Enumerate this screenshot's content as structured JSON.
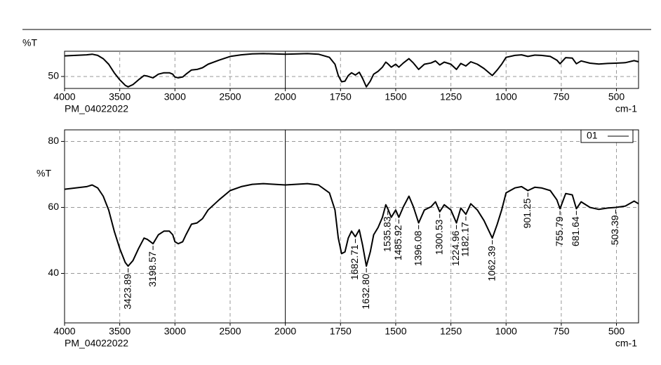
{
  "chart_data": [
    {
      "type": "line",
      "ylabel": "%T",
      "xlabel": "cm-1",
      "sample": "PM_04022022",
      "xlim": [
        4000,
        400
      ],
      "x_break": 2000,
      "ylim": [
        41,
        69
      ],
      "xticks": [
        4000,
        3500,
        3000,
        2500,
        2000,
        1750,
        1500,
        1250,
        1000,
        750,
        500
      ],
      "yticks": [
        50
      ],
      "grid": true,
      "x": [
        4000,
        3900,
        3800,
        3750,
        3700,
        3650,
        3600,
        3550,
        3500,
        3450,
        3423.89,
        3380,
        3330,
        3280,
        3250,
        3198.57,
        3150,
        3100,
        3050,
        3020,
        3000,
        2970,
        2930,
        2900,
        2850,
        2800,
        2750,
        2700,
        2600,
        2500,
        2400,
        2300,
        2200,
        2000,
        1900,
        1850,
        1800,
        1775,
        1760,
        1745,
        1730,
        1715,
        1700,
        1682.71,
        1665,
        1650,
        1632.8,
        1615,
        1600,
        1580,
        1560,
        1545,
        1535.83,
        1520,
        1500,
        1485.92,
        1465,
        1440,
        1420,
        1396.08,
        1370,
        1340,
        1320,
        1300.53,
        1280,
        1250,
        1224.96,
        1205,
        1182.17,
        1160,
        1130,
        1100,
        1062.39,
        1040,
        1020,
        1000,
        960,
        930,
        901.25,
        870,
        840,
        800,
        770,
        755.79,
        730,
        700,
        681.64,
        660,
        620,
        580,
        540,
        503.39,
        460,
        420,
        400
      ],
      "series": [
        {
          "color": "#000000",
          "values": [
            65.5,
            65.9,
            66.3,
            66.8,
            65.9,
            63.4,
            59.2,
            52.8,
            47.5,
            43.3,
            42.2,
            43.9,
            47.5,
            50.7,
            50.3,
            49,
            51.7,
            52.8,
            52.8,
            51.7,
            49.6,
            49,
            49.6,
            51.7,
            54.9,
            55.3,
            56.6,
            59.2,
            62.3,
            65.1,
            66.3,
            67,
            67.2,
            66.8,
            67.2,
            66.8,
            64.4,
            59.2,
            50.7,
            46,
            46.5,
            50.7,
            52.8,
            51.1,
            53.2,
            48.6,
            42.2,
            46.5,
            51.7,
            53.9,
            57,
            60.8,
            59.6,
            57,
            59.2,
            57,
            60.2,
            63.4,
            60.2,
            55.3,
            59.2,
            60.2,
            61.7,
            58.7,
            60.8,
            59.2,
            55.3,
            59.8,
            57.9,
            61.1,
            59.2,
            56,
            50.7,
            54.9,
            59.2,
            64.4,
            65.9,
            66.3,
            65.1,
            66.1,
            65.9,
            65.1,
            62.3,
            59.6,
            64.2,
            63.8,
            59.6,
            61.7,
            60,
            59.4,
            59.8,
            60,
            60.4,
            61.9,
            61.1
          ]
        }
      ]
    },
    {
      "type": "line",
      "ylabel": "%T",
      "xlabel": "cm-1",
      "sample": "PM_04022022",
      "xlim": [
        4000,
        400
      ],
      "x_break": 2000,
      "ylim": [
        25,
        83.5
      ],
      "xticks": [
        4000,
        3500,
        3000,
        2500,
        2000,
        1750,
        1500,
        1250,
        1000,
        750,
        500
      ],
      "yticks": [
        40,
        60,
        80
      ],
      "grid": true,
      "legend": "top-right",
      "peaks": [
        3423.89,
        3198.57,
        1682.71,
        1632.8,
        1535.83,
        1485.92,
        1396.08,
        1300.53,
        1224.96,
        1182.17,
        1062.39,
        901.25,
        755.79,
        681.64,
        503.39
      ],
      "peak_labels": [
        "3423.89",
        "3198.57",
        "1682.71",
        "1632.80",
        "1535.83",
        "1485.92",
        "1396.08",
        "1300.53",
        "1224.96",
        "1182.17",
        "1062.39",
        "901.25",
        "755.79",
        "681.64",
        "503.39"
      ],
      "x": [
        4000,
        3900,
        3800,
        3750,
        3700,
        3650,
        3600,
        3550,
        3500,
        3450,
        3423.89,
        3380,
        3330,
        3280,
        3250,
        3198.57,
        3150,
        3100,
        3050,
        3020,
        3000,
        2970,
        2930,
        2900,
        2850,
        2800,
        2750,
        2700,
        2600,
        2500,
        2400,
        2300,
        2200,
        2000,
        1900,
        1850,
        1800,
        1775,
        1760,
        1745,
        1730,
        1715,
        1700,
        1682.71,
        1665,
        1650,
        1632.8,
        1615,
        1600,
        1580,
        1560,
        1545,
        1535.83,
        1520,
        1500,
        1485.92,
        1465,
        1440,
        1420,
        1396.08,
        1370,
        1340,
        1320,
        1300.53,
        1280,
        1250,
        1224.96,
        1205,
        1182.17,
        1160,
        1130,
        1100,
        1062.39,
        1040,
        1020,
        1000,
        960,
        930,
        901.25,
        870,
        840,
        800,
        770,
        755.79,
        730,
        700,
        681.64,
        660,
        620,
        580,
        540,
        503.39,
        460,
        420,
        400
      ],
      "series": [
        {
          "name": "01",
          "color": "#000000",
          "values": [
            65.5,
            65.9,
            66.3,
            66.8,
            65.9,
            63.4,
            59.2,
            52.8,
            47.5,
            43.3,
            42.2,
            43.9,
            47.5,
            50.7,
            50.3,
            49,
            51.7,
            52.8,
            52.8,
            51.7,
            49.6,
            49,
            49.6,
            51.7,
            54.9,
            55.3,
            56.6,
            59.2,
            62.3,
            65.1,
            66.3,
            67,
            67.2,
            66.8,
            67.2,
            66.8,
            64.4,
            59.2,
            50.7,
            46,
            46.5,
            50.7,
            52.8,
            51.1,
            53.2,
            48.6,
            42.2,
            46.5,
            51.7,
            53.9,
            57,
            60.8,
            59.6,
            57,
            59.2,
            57,
            60.2,
            63.4,
            60.2,
            55.3,
            59.2,
            60.2,
            61.7,
            58.7,
            60.8,
            59.2,
            55.3,
            59.8,
            57.9,
            61.1,
            59.2,
            56,
            50.7,
            54.9,
            59.2,
            64.4,
            65.9,
            66.3,
            65.1,
            66.1,
            65.9,
            65.1,
            62.3,
            59.6,
            64.2,
            63.8,
            59.6,
            61.7,
            60,
            59.4,
            59.8,
            60,
            60.4,
            61.9,
            61.1
          ]
        }
      ]
    }
  ]
}
